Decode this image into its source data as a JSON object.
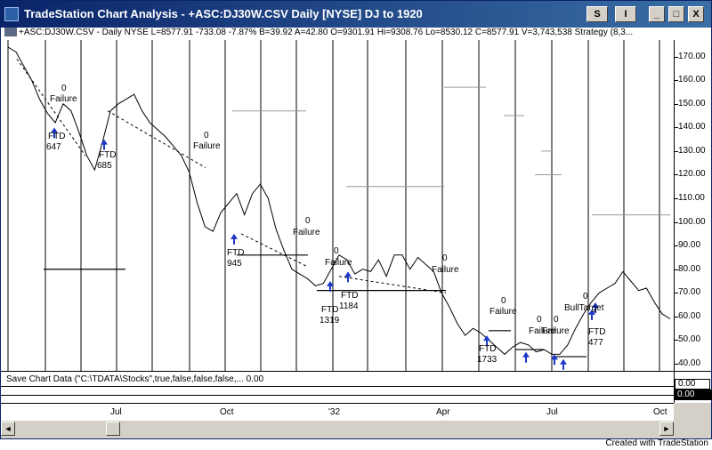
{
  "window": {
    "title": "TradeStation Chart Analysis - +ASC:DJ30W.CSV  Daily  [NYSE] DJ to 1920",
    "buttons": [
      "S",
      "I",
      "_",
      "□",
      "X"
    ]
  },
  "header": {
    "info": "+ASC:DJ30W.CSV - Daily  NYSE  L=8577.91  -733.08  -7.87%  B=39.92  A=42.80  O=9301.91  Hi=9308.76  Lo=8530.12  C=8577.91  V=3,743,538  Strategy (8,3..."
  },
  "y_axis": {
    "ticks": [
      "170.00",
      "160.00",
      "150.00",
      "140.00",
      "130.00",
      "120.00",
      "110.00",
      "100.00",
      "90.00",
      "80.00",
      "70.00",
      "60.00",
      "50.00",
      "40.00"
    ]
  },
  "x_axis": {
    "ticks": [
      "Jul",
      "Oct",
      "'32",
      "Apr",
      "Jul",
      "Oct"
    ]
  },
  "indicator": {
    "label": "Save Chart Data (\"C:\\TDATA\\Stocks\",true,false,false,false,...  0.00",
    "value_top": "0.00",
    "value_bottom": "0.00"
  },
  "annotations": [
    {
      "text": "0"
    },
    {
      "text": "Failure"
    },
    {
      "text": "FTD"
    },
    {
      "text": "647"
    },
    {
      "text": "FTD"
    },
    {
      "text": "685"
    },
    {
      "text": "0"
    },
    {
      "text": "Failure"
    },
    {
      "text": "FTD"
    },
    {
      "text": "945"
    },
    {
      "text": "0"
    },
    {
      "text": "Failure"
    },
    {
      "text": "0"
    },
    {
      "text": "Failure"
    },
    {
      "text": "FTD"
    },
    {
      "text": "1184"
    },
    {
      "text": "FTD"
    },
    {
      "text": "1319"
    },
    {
      "text": "0"
    },
    {
      "text": "Failure"
    },
    {
      "text": "0"
    },
    {
      "text": "Failure"
    },
    {
      "text": "0"
    },
    {
      "text": "0"
    },
    {
      "text": "Failure"
    },
    {
      "text": "Failure"
    },
    {
      "text": "FTD"
    },
    {
      "text": "1733"
    },
    {
      "text": "0"
    },
    {
      "text": "BullTarget"
    },
    {
      "text": "FTD"
    },
    {
      "text": "477"
    }
  ],
  "footer": {
    "credit": "Created with TradeStation"
  },
  "chart_data": {
    "type": "line",
    "title": "",
    "xlabel": "",
    "ylabel": "",
    "ylim": [
      37,
      177
    ],
    "series": [
      {
        "values": [
          174,
          172,
          166,
          160,
          152,
          146,
          142,
          150,
          147,
          138,
          128,
          122,
          134,
          147,
          150,
          152,
          154,
          147,
          142,
          139,
          136,
          132,
          128,
          121,
          108,
          98,
          96,
          104,
          108,
          112,
          103,
          112,
          116,
          110,
          97,
          88,
          80,
          78,
          76,
          73,
          74,
          80,
          86,
          84,
          78,
          80,
          79,
          84,
          77,
          86,
          86,
          80,
          85,
          82,
          79,
          70,
          64,
          57,
          52,
          55,
          53,
          50,
          47,
          44,
          47,
          49,
          48,
          45,
          46,
          44,
          44,
          48,
          55,
          61,
          66,
          70,
          72,
          74,
          79,
          75,
          71,
          72,
          66,
          61,
          59
        ]
      }
    ]
  }
}
